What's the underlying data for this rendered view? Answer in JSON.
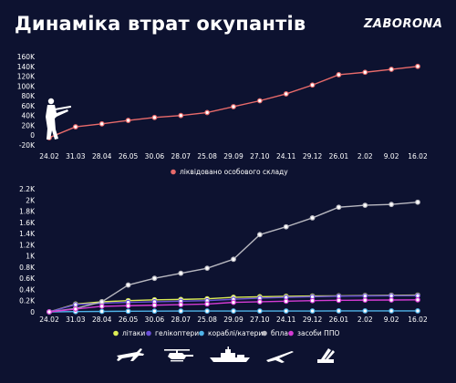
{
  "header": {
    "title": "Динаміка втрат окупантів",
    "brand": "ZABORONA"
  },
  "colors": {
    "background": "#0d1230",
    "axis_text": "#ffffff",
    "personnel": "#e86a6a",
    "litaky": "#ddee55",
    "helikoptery": "#6a4fd8",
    "korabli": "#4fb3e8",
    "bpla": "#b8b8c0",
    "ppo": "#d43bd4"
  },
  "icons": {
    "personnel": "soldier-with-rifle-icon",
    "litaky": "jet-plane-icon",
    "helikoptery": "helicopter-icon",
    "korabli": "warship-icon",
    "bpla": "drone-icon",
    "ppo": "missile-launcher-icon"
  },
  "chart_data": [
    {
      "type": "line",
      "categories": [
        "24.02",
        "31.03",
        "28.04",
        "26.05",
        "30.06",
        "28.07",
        "25.08",
        "29.09",
        "27.10",
        "24.11",
        "29.12",
        "26.01",
        "2.02",
        "9.02",
        "16.02"
      ],
      "yticks": [
        "160K",
        "140K",
        "120K",
        "100K",
        "80K",
        "60K",
        "40K",
        "20K",
        "0",
        "-20K"
      ],
      "ylim": [
        -20000,
        160000
      ],
      "series": [
        {
          "name": "ліквідовано особового складу",
          "color": "#e86a6a",
          "values": [
            -5000,
            17000,
            23000,
            30000,
            36000,
            40000,
            46000,
            58000,
            70000,
            84000,
            102000,
            123000,
            128000,
            134000,
            140000
          ]
        }
      ],
      "legend": "bottom",
      "grid": false
    },
    {
      "type": "line",
      "categories": [
        "24.02",
        "31.03",
        "28.04",
        "26.05",
        "30.06",
        "28.07",
        "25.08",
        "29.09",
        "27.10",
        "24.11",
        "29.12",
        "26.01",
        "2.02",
        "9.02",
        "16.02"
      ],
      "yticks": [
        "2.2K",
        "2K",
        "1.8K",
        "1.6K",
        "1.4K",
        "1.2K",
        "1K",
        "0.8K",
        "0.6K",
        "0.4K",
        "0.2K",
        "0"
      ],
      "ylim": [
        0,
        2200
      ],
      "series": [
        {
          "name": "літаки",
          "color": "#ddee55",
          "values": [
            0,
            140,
            180,
            200,
            215,
            222,
            234,
            260,
            270,
            278,
            283,
            286,
            293,
            296,
            300
          ]
        },
        {
          "name": "гелікоптери",
          "color": "#6a4fd8",
          "values": [
            0,
            130,
            155,
            170,
            180,
            190,
            200,
            225,
            245,
            260,
            270,
            280,
            285,
            288,
            290
          ]
        },
        {
          "name": "кораблі/катери",
          "color": "#4fb3e8",
          "values": [
            0,
            5,
            8,
            12,
            14,
            15,
            15,
            15,
            16,
            16,
            16,
            17,
            18,
            18,
            18
          ]
        },
        {
          "name": "бпла",
          "color": "#b8b8c0",
          "values": [
            0,
            60,
            180,
            480,
            600,
            690,
            780,
            940,
            1380,
            1520,
            1680,
            1870,
            1905,
            1920,
            1960
          ]
        },
        {
          "name": "засоби ППО",
          "color": "#d43bd4",
          "values": [
            0,
            50,
            100,
            110,
            120,
            130,
            140,
            170,
            180,
            190,
            200,
            206,
            210,
            212,
            215
          ]
        }
      ],
      "legend": "bottom",
      "grid": false
    }
  ]
}
